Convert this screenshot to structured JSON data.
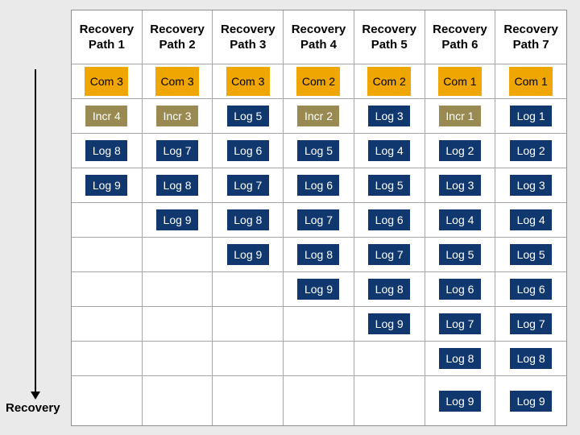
{
  "page": {
    "background_color": "#EAEAEA",
    "flow_label": "Recovery"
  },
  "colors": {
    "table_background": "#FFFFFF",
    "grid_line": "#A6A6A6",
    "outer_border": "#8F8F8F",
    "com_fill": "#F0A600",
    "com_text": "#000000",
    "incr_fill": "#998A52",
    "incr_text": "#FFFFFF",
    "log_fill": "#11386E",
    "log_text": "#FFFFFF",
    "arrow_color": "#000000"
  },
  "table": {
    "column_headers": [
      "Recovery Path 1",
      "Recovery Path 2",
      "Recovery Path 3",
      "Recovery Path 4",
      "Recovery Path 5",
      "Recovery Path 6",
      "Recovery Path 7"
    ],
    "rows": [
      [
        {
          "label": "Com 3",
          "type": "com"
        },
        {
          "label": "Com 3",
          "type": "com"
        },
        {
          "label": "Com 3",
          "type": "com"
        },
        {
          "label": "Com 2",
          "type": "com"
        },
        {
          "label": "Com 2",
          "type": "com"
        },
        {
          "label": "Com 1",
          "type": "com"
        },
        {
          "label": "Com 1",
          "type": "com"
        }
      ],
      [
        {
          "label": "Incr 4",
          "type": "incr"
        },
        {
          "label": "Incr 3",
          "type": "incr"
        },
        {
          "label": "Log 5",
          "type": "log"
        },
        {
          "label": "Incr 2",
          "type": "incr"
        },
        {
          "label": "Log 3",
          "type": "log"
        },
        {
          "label": "Incr 1",
          "type": "incr"
        },
        {
          "label": "Log 1",
          "type": "log"
        }
      ],
      [
        {
          "label": "Log 8",
          "type": "log"
        },
        {
          "label": "Log 7",
          "type": "log"
        },
        {
          "label": "Log 6",
          "type": "log"
        },
        {
          "label": "Log 5",
          "type": "log"
        },
        {
          "label": "Log 4",
          "type": "log"
        },
        {
          "label": "Log 2",
          "type": "log"
        },
        {
          "label": "Log 2",
          "type": "log"
        }
      ],
      [
        {
          "label": "Log 9",
          "type": "log"
        },
        {
          "label": "Log 8",
          "type": "log"
        },
        {
          "label": "Log 7",
          "type": "log"
        },
        {
          "label": "Log 6",
          "type": "log"
        },
        {
          "label": "Log 5",
          "type": "log"
        },
        {
          "label": "Log 3",
          "type": "log"
        },
        {
          "label": "Log 3",
          "type": "log"
        }
      ],
      [
        null,
        {
          "label": "Log 9",
          "type": "log"
        },
        {
          "label": "Log 8",
          "type": "log"
        },
        {
          "label": "Log 7",
          "type": "log"
        },
        {
          "label": "Log 6",
          "type": "log"
        },
        {
          "label": "Log 4",
          "type": "log"
        },
        {
          "label": "Log 4",
          "type": "log"
        }
      ],
      [
        null,
        null,
        {
          "label": "Log 9",
          "type": "log"
        },
        {
          "label": "Log 8",
          "type": "log"
        },
        {
          "label": "Log 7",
          "type": "log"
        },
        {
          "label": "Log 5",
          "type": "log"
        },
        {
          "label": "Log 5",
          "type": "log"
        }
      ],
      [
        null,
        null,
        null,
        {
          "label": "Log 9",
          "type": "log"
        },
        {
          "label": "Log 8",
          "type": "log"
        },
        {
          "label": "Log 6",
          "type": "log"
        },
        {
          "label": "Log 6",
          "type": "log"
        }
      ],
      [
        null,
        null,
        null,
        null,
        {
          "label": "Log 9",
          "type": "log"
        },
        {
          "label": "Log 7",
          "type": "log"
        },
        {
          "label": "Log 7",
          "type": "log"
        }
      ],
      [
        null,
        null,
        null,
        null,
        null,
        {
          "label": "Log 8",
          "type": "log"
        },
        {
          "label": "Log 8",
          "type": "log"
        }
      ],
      [
        null,
        null,
        null,
        null,
        null,
        {
          "label": "Log 9",
          "type": "log"
        },
        {
          "label": "Log 9",
          "type": "log"
        }
      ]
    ]
  }
}
